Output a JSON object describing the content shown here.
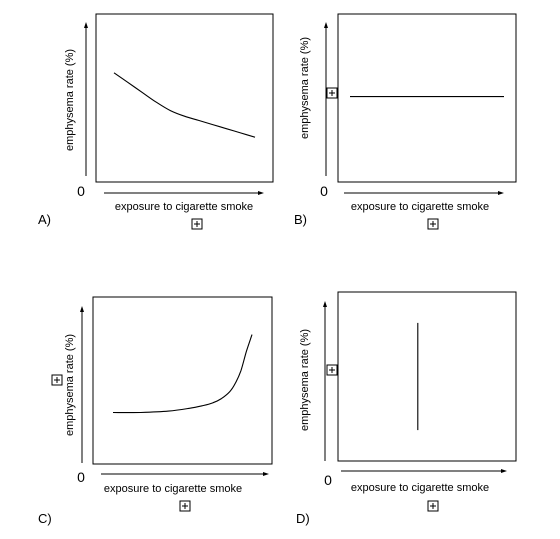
{
  "chart_data": [
    {
      "panel": "A)",
      "type": "line",
      "xlabel": "exposure to cigarette smoke",
      "ylabel": "emphysema rate (%)",
      "origin_label": "0",
      "x": [
        0,
        10,
        20,
        30,
        40,
        50,
        60,
        70,
        80,
        90,
        100
      ],
      "y": [
        68,
        61,
        54,
        47,
        41,
        37,
        34,
        31,
        28,
        25,
        22
      ]
    },
    {
      "panel": "B)",
      "type": "line",
      "xlabel": "exposure to cigarette smoke",
      "ylabel": "emphysema rate (%)",
      "origin_label": "0",
      "x": [
        0,
        100
      ],
      "y": [
        51,
        51
      ]
    },
    {
      "panel": "C)",
      "type": "line",
      "xlabel": "exposure to cigarette smoke",
      "ylabel": "emphysema rate (%)",
      "origin_label": "0",
      "x": [
        0,
        20,
        40,
        55,
        65,
        72,
        78,
        84,
        88,
        92,
        96,
        100
      ],
      "y": [
        27,
        27,
        28,
        30,
        32,
        34,
        37,
        42,
        48,
        57,
        71,
        83
      ]
    },
    {
      "panel": "D)",
      "type": "line",
      "xlabel": "exposure to cigarette smoke",
      "ylabel": "emphysema rate (%)",
      "origin_label": "0",
      "x": [
        44,
        44
      ],
      "y": [
        12,
        88
      ]
    }
  ]
}
